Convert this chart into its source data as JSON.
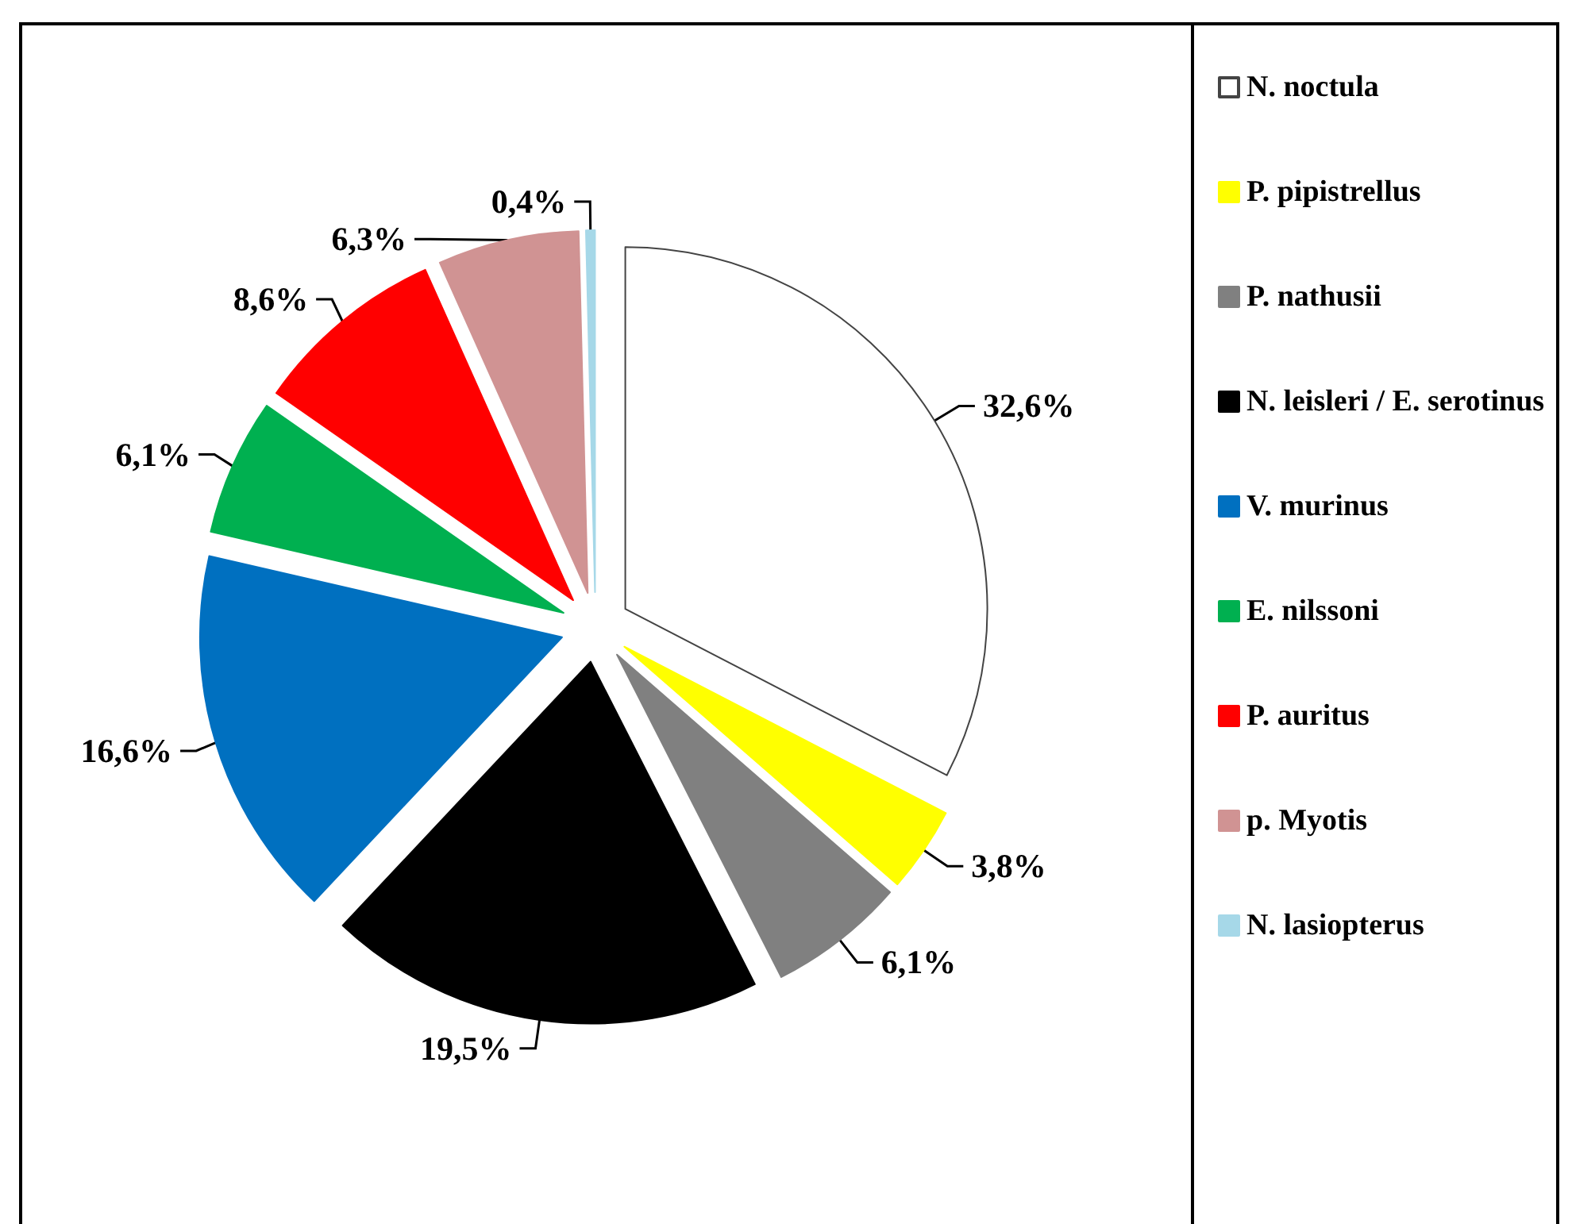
{
  "chart_data": {
    "type": "pie",
    "categories": [
      "N. noctula",
      "P. pipistrellus",
      "P. nathusii",
      "N. leisleri / E. serotinus",
      "V. murinus",
      "E. nilssoni",
      "P. auritus",
      "p. Myotis",
      "N. lasiopterus"
    ],
    "values": [
      32.6,
      3.8,
      6.1,
      19.5,
      16.6,
      6.1,
      8.6,
      6.3,
      0.4
    ],
    "value_labels": [
      "32,6%",
      "3,8%",
      "6,1%",
      "19,5%",
      "16,6%",
      "6,1%",
      "8,6%",
      "6,3%",
      "0,4%"
    ],
    "colors": [
      "#ffffff",
      "#ffff00",
      "#808080",
      "#000000",
      "#0070c0",
      "#00b050",
      "#ff0000",
      "#d09393",
      "#a6d8e8"
    ],
    "legend": "right"
  }
}
